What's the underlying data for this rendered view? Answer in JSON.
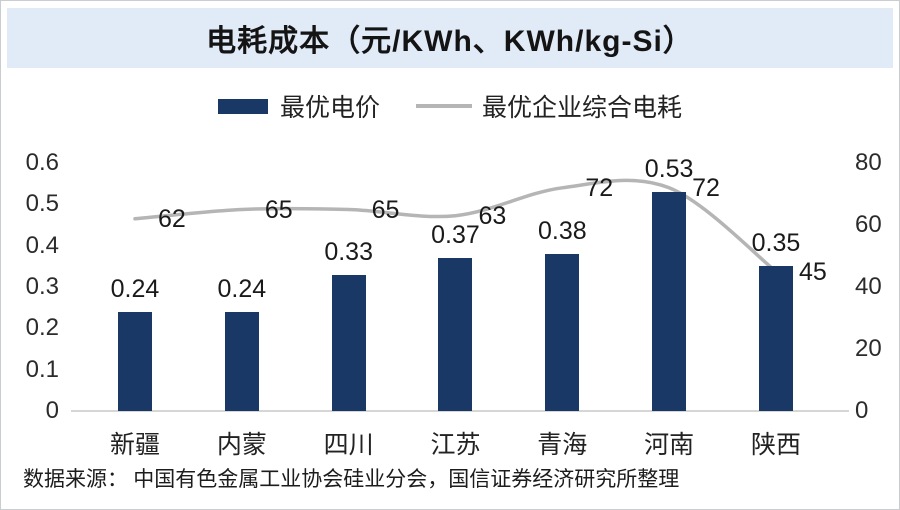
{
  "title": "电耗成本（元/KWh、KWh/kg-Si）",
  "legend": {
    "bar_label": "最优电价",
    "line_label": "最优企业综合电耗"
  },
  "footer": "数据来源： 中国有色金属工业协会硅业分会，国信证券经济研究所整理",
  "colors": {
    "bar": "#1a3866",
    "line": "#b5b5b5",
    "title_band": "#e1eaf7",
    "axis_line": "#d6d6d6"
  },
  "chart_data": {
    "type": "bar",
    "subtype": "bar-with-line-overlay",
    "title": "电耗成本（元/KWh、KWh/kg-Si）",
    "categories": [
      "新疆",
      "内蒙",
      "四川",
      "江苏",
      "青海",
      "河南",
      "陕西"
    ],
    "series": [
      {
        "name": "最优电价",
        "type": "bar",
        "axis": "left",
        "values": [
          0.24,
          0.24,
          0.33,
          0.37,
          0.38,
          0.53,
          0.35
        ]
      },
      {
        "name": "最优企业综合电耗",
        "type": "line",
        "axis": "right",
        "values": [
          62,
          65,
          65,
          63,
          72,
          72,
          45
        ]
      }
    ],
    "left_axis": {
      "ticks": [
        "0.6",
        "0.5",
        "0.4",
        "0.3",
        "0.2",
        "0.1",
        "0"
      ],
      "min": 0,
      "max": 0.6
    },
    "right_axis": {
      "ticks": [
        "80",
        "60",
        "40",
        "20",
        "0"
      ],
      "min": 0,
      "max": 80
    },
    "grid": false,
    "legend_position": "top",
    "data_labels": true
  }
}
